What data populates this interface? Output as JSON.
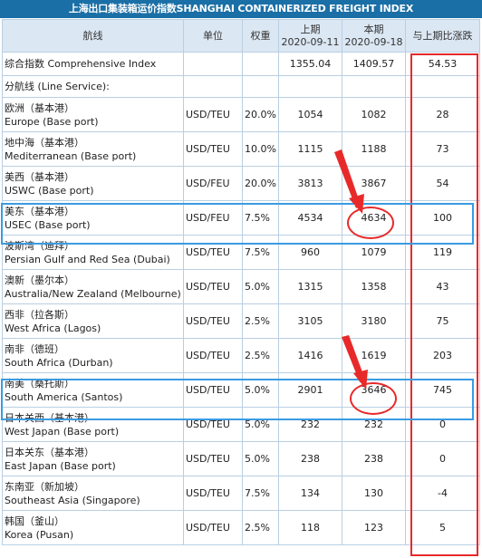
{
  "title": "上海出口集装箱运价指数SHANGHAI CONTAINERIZED FREIGHT INDEX",
  "headers": {
    "route": "航线",
    "unit": "单位",
    "weight": "权重",
    "prev_label": "上期",
    "prev_date": "2020-09-11",
    "curr_label": "本期",
    "curr_date": "2020-09-18",
    "change": "与上期比涨跌"
  },
  "composite": {
    "label": "综合指数 Comprehensive Index",
    "prev": "1355.04",
    "curr": "1409.57",
    "change": "54.53"
  },
  "section_label": "分航线 (Line Service):",
  "rows": [
    {
      "zh": "欧洲（基本港）",
      "en": "Europe (Base port)",
      "unit": "USD/TEU",
      "weight": "20.0%",
      "prev": "1054",
      "curr": "1082",
      "change": "28"
    },
    {
      "zh": "地中海（基本港）",
      "en": "Mediterranean (Base port)",
      "unit": "USD/TEU",
      "weight": "10.0%",
      "prev": "1115",
      "curr": "1188",
      "change": "73"
    },
    {
      "zh": "美西（基本港）",
      "en": "USWC (Base port)",
      "unit": "USD/FEU",
      "weight": "20.0%",
      "prev": "3813",
      "curr": "3867",
      "change": "54"
    },
    {
      "zh": "美东（基本港）",
      "en": "USEC (Base port)",
      "unit": "USD/FEU",
      "weight": "7.5%",
      "prev": "4534",
      "curr": "4634",
      "change": "100"
    },
    {
      "zh": "波斯湾（迪拜）",
      "en": "Persian Gulf and Red Sea (Dubai)",
      "unit": "USD/TEU",
      "weight": "7.5%",
      "prev": "960",
      "curr": "1079",
      "change": "119"
    },
    {
      "zh": "澳新（墨尔本）",
      "en": "Australia/New Zealand (Melbourne)",
      "unit": "USD/TEU",
      "weight": "5.0%",
      "prev": "1315",
      "curr": "1358",
      "change": "43"
    },
    {
      "zh": "西非（拉各斯）",
      "en": "West Africa (Lagos)",
      "unit": "USD/TEU",
      "weight": "2.5%",
      "prev": "3105",
      "curr": "3180",
      "change": "75"
    },
    {
      "zh": "南非（德班）",
      "en": "South Africa (Durban)",
      "unit": "USD/TEU",
      "weight": "2.5%",
      "prev": "1416",
      "curr": "1619",
      "change": "203"
    },
    {
      "zh": "南美（桑托斯）",
      "en": "South America (Santos)",
      "unit": "USD/TEU",
      "weight": "5.0%",
      "prev": "2901",
      "curr": "3646",
      "change": "745"
    },
    {
      "zh": "日本关西（基本港）",
      "en": "West Japan (Base port)",
      "unit": "USD/TEU",
      "weight": "5.0%",
      "prev": "232",
      "curr": "232",
      "change": "0"
    },
    {
      "zh": "日本关东（基本港）",
      "en": "East Japan (Base port)",
      "unit": "USD/TEU",
      "weight": "5.0%",
      "prev": "238",
      "curr": "238",
      "change": "0"
    },
    {
      "zh": "东南亚（新加坡）",
      "en": "Southeast Asia (Singapore)",
      "unit": "USD/TEU",
      "weight": "7.5%",
      "prev": "134",
      "curr": "130",
      "change": "-4"
    },
    {
      "zh": "韩国（釜山）",
      "en": "Korea (Pusan)",
      "unit": "USD/TEU",
      "weight": "2.5%",
      "prev": "118",
      "curr": "123",
      "change": "5"
    }
  ],
  "annotation_colors": {
    "red": "#e8292a",
    "blue": "#3a9be2"
  }
}
